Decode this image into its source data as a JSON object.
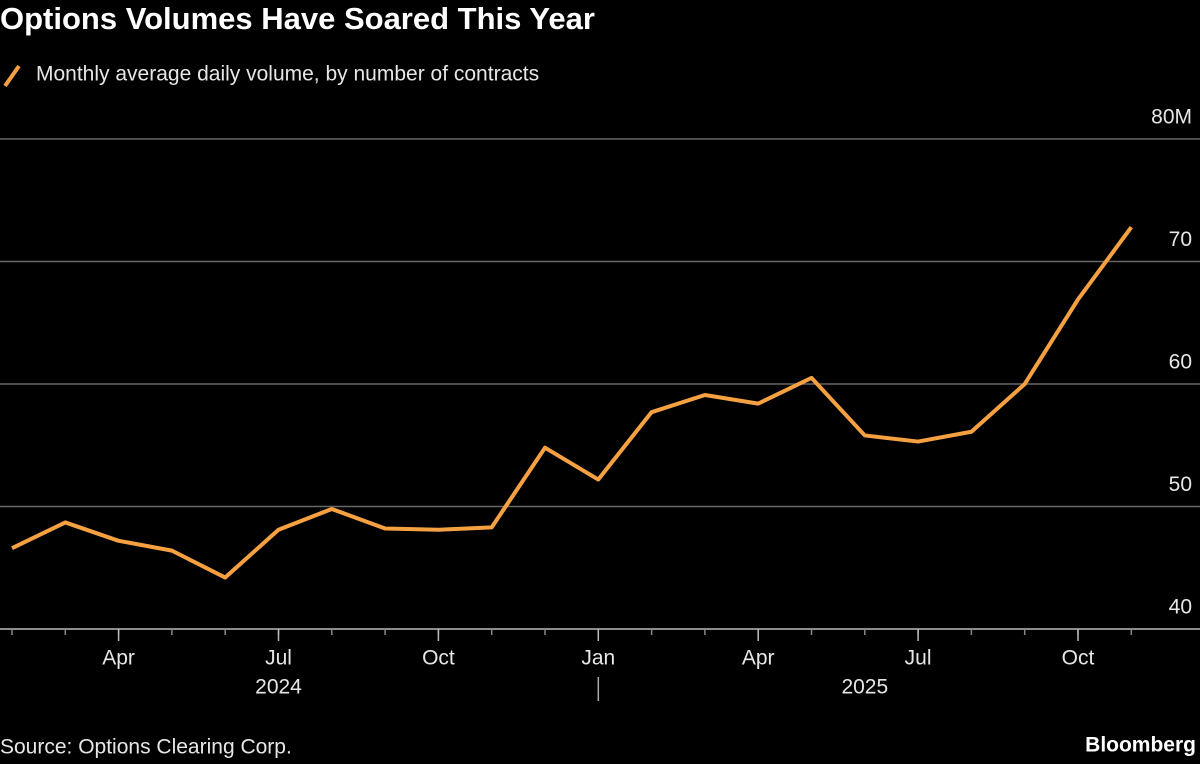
{
  "chart_data": {
    "type": "line",
    "title": "Options Volumes Have Soared This Year",
    "x": [
      "2024-02",
      "2024-03",
      "2024-04",
      "2024-05",
      "2024-06",
      "2024-07",
      "2024-08",
      "2024-09",
      "2024-10",
      "2024-11",
      "2024-12",
      "2025-01",
      "2025-02",
      "2025-03",
      "2025-04",
      "2025-05",
      "2025-06",
      "2025-07",
      "2025-08",
      "2025-09",
      "2025-10",
      "2025-11"
    ],
    "series": [
      {
        "name": "Monthly average daily volume, by number of contracts",
        "color": "#f5a142",
        "values": [
          46.6,
          48.7,
          47.2,
          46.4,
          44.2,
          48.1,
          49.8,
          48.2,
          48.1,
          48.3,
          54.8,
          52.2,
          57.7,
          59.1,
          58.4,
          60.5,
          55.8,
          55.3,
          56.1,
          60.0,
          66.9,
          72.8
        ]
      }
    ],
    "ylim": [
      40,
      80
    ],
    "yticks": [
      40,
      50,
      60,
      70,
      {
        "value": 80,
        "label": "80M"
      }
    ],
    "xticks": [
      {
        "value": "2024-04",
        "label": "Apr"
      },
      {
        "value": "2024-07",
        "label": "Jul"
      },
      {
        "value": "2024-10",
        "label": "Oct"
      },
      {
        "value": "2025-01",
        "label": "Jan"
      },
      {
        "value": "2025-04",
        "label": "Apr"
      },
      {
        "value": "2025-07",
        "label": "Jul"
      },
      {
        "value": "2025-10",
        "label": "Oct"
      }
    ],
    "year_labels": [
      {
        "value": "2024",
        "label": "2024"
      },
      {
        "value": "2025",
        "label": "2025"
      }
    ],
    "grid": true,
    "source": "Source: Options Clearing Corp.",
    "brand": "Bloomberg"
  }
}
